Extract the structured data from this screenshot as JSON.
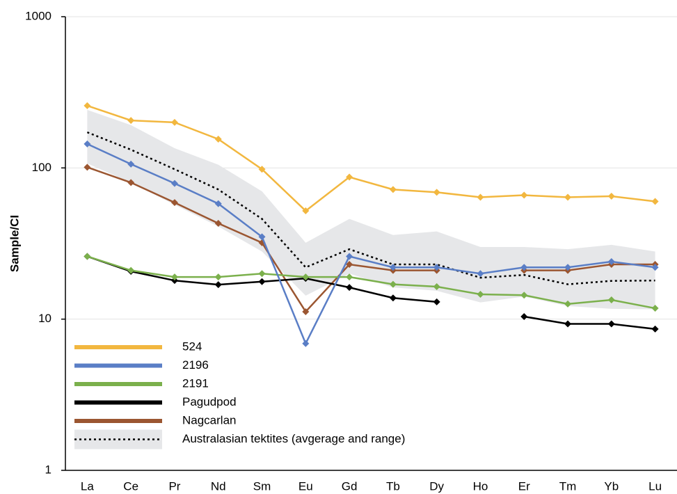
{
  "chart_data": {
    "type": "line",
    "y_label": "Sample/CI",
    "log_y": true,
    "grid": true,
    "legend": "lower left",
    "categories": [
      "La",
      "Ce",
      "Pr",
      "Nd",
      "Sm",
      "Eu",
      "Gd",
      "Tb",
      "Dy",
      "Ho",
      "Er",
      "Tm",
      "Yb",
      "Lu"
    ],
    "ylim": [
      1,
      1000
    ],
    "yticks": [
      1,
      10,
      100,
      1000
    ],
    "series": [
      {
        "name": "524",
        "color": "#f2b73f",
        "values": [
          258,
          206,
          200,
          155,
          98,
          52,
          87,
          72,
          69,
          64,
          66,
          64,
          65,
          60
        ]
      },
      {
        "name": "2196",
        "color": "#5a7ec6",
        "values": [
          144,
          106,
          79,
          58,
          35,
          6.9,
          26,
          22,
          22,
          20,
          22,
          22,
          24,
          22
        ]
      },
      {
        "name": "2191",
        "color": "#7bb04c",
        "values": [
          26,
          21,
          19,
          19,
          20,
          19,
          19,
          17,
          16.4,
          14.6,
          14.4,
          12.6,
          13.4,
          11.8
        ]
      },
      {
        "name": "Pagudpod",
        "color": "#000000",
        "values": [
          26,
          20.7,
          18,
          16.9,
          17.7,
          18.6,
          16.2,
          13.8,
          13,
          null,
          10.4,
          9.3,
          9.3,
          8.6
        ]
      },
      {
        "name": "Nagcarlan",
        "color": "#9b5631",
        "values": [
          101,
          80,
          59,
          43,
          32,
          11.2,
          23,
          21,
          21,
          null,
          21,
          21,
          23,
          23
        ]
      },
      {
        "name": "Australasian tektites (avgerage and range)",
        "color": "#000000",
        "dashed": true,
        "markers": false,
        "values": [
          172,
          132,
          98,
          72,
          46,
          22,
          29,
          23,
          23,
          18.8,
          19.6,
          17,
          17.9,
          18
        ],
        "range_color": "#e6e7e9",
        "range_high": [
          242,
          192,
          135,
          105,
          70,
          32,
          46,
          36,
          38,
          30,
          30,
          29,
          31,
          28
        ],
        "range_low": [
          107,
          80,
          57,
          41,
          28,
          14.3,
          20,
          16.2,
          15.4,
          12.9,
          14.1,
          12.2,
          11.7,
          11.6
        ]
      }
    ]
  }
}
